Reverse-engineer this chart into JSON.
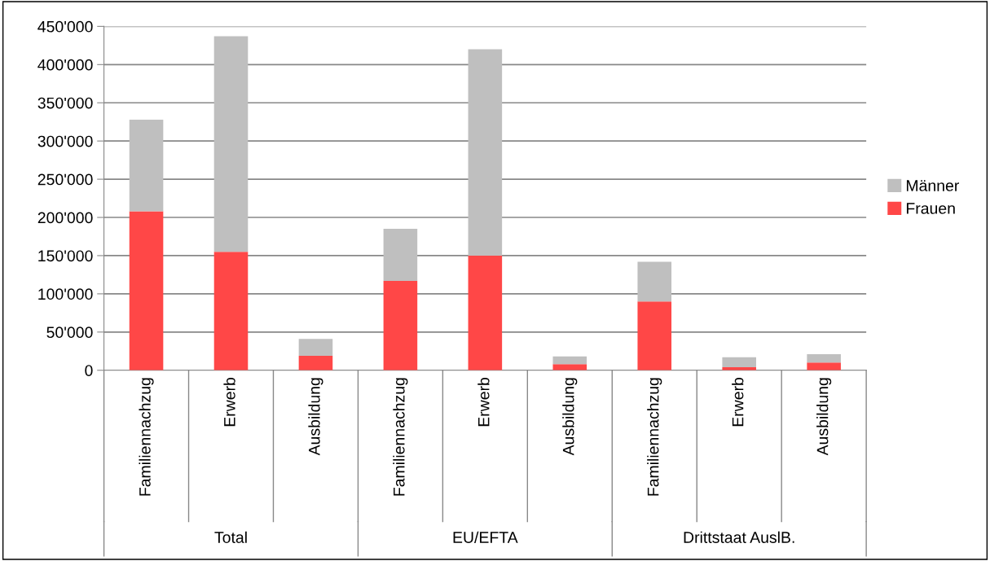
{
  "chart_data": {
    "type": "bar",
    "stacked": true,
    "categories": [
      "Familiennachzug",
      "Erwerb",
      "Ausbildung",
      "Familiennachzug",
      "Erwerb",
      "Ausbildung",
      "Familiennachzug",
      "Erwerb",
      "Ausbildung"
    ],
    "series": [
      {
        "name": "Frauen",
        "color": "#ff4747",
        "values": [
          208000,
          155000,
          19000,
          117000,
          150000,
          8000,
          90000,
          4000,
          10000
        ]
      },
      {
        "name": "Männer",
        "color": "#bfbfbf",
        "values": [
          120000,
          282000,
          22000,
          68000,
          270000,
          10000,
          52000,
          13000,
          11000
        ]
      }
    ],
    "annotations": [
      "Total",
      "EU/EFTA",
      "Drittstaat AuslB."
    ],
    "ylim": [
      0,
      450000
    ],
    "yticks": [
      0,
      {
        "value": 50000,
        "label": "50'000"
      },
      {
        "value": 100000,
        "label": "100'000"
      },
      {
        "value": 150000,
        "label": "150'000"
      },
      {
        "value": 200000,
        "label": "200'000"
      },
      {
        "value": 250000,
        "label": "250'000"
      },
      {
        "value": 300000,
        "label": "300'000"
      },
      {
        "value": 350000,
        "label": "350'000"
      },
      {
        "value": 400000,
        "label": "400'000"
      },
      {
        "value": 450000,
        "label": "450'000"
      }
    ],
    "grid": "y",
    "legend": "right"
  }
}
